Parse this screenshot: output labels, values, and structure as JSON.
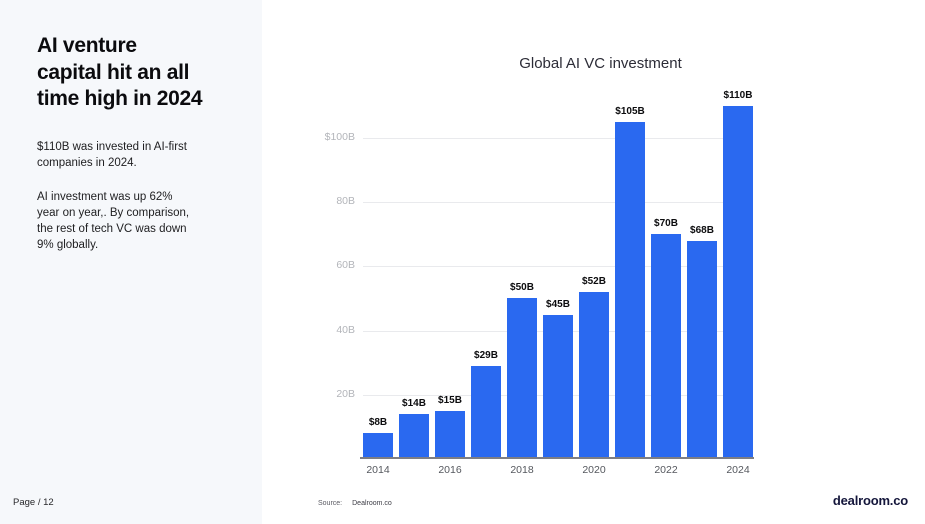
{
  "sidebar": {
    "title": "AI venture\ncapital hit an all\ntime high in 2024",
    "paragraph1": "$110B was invested in AI-first\ncompanies in 2024.",
    "paragraph2": "AI investment was up 62%\nyear on year,. By comparison,\nthe rest of tech VC was down\n9% globally.",
    "page_label": "Page / 12"
  },
  "footer": {
    "source_label": "Source:",
    "source_value": "Dealroom.co",
    "logo": "dealroom.co"
  },
  "colors": {
    "bar_blue": "#2a69f0",
    "logo_navy": "#14163b",
    "sidebar_bg": "#f6f8fb"
  },
  "chart_data": {
    "type": "bar",
    "title": "Global AI VC investment",
    "categories": [
      "2014",
      "2015",
      "2016",
      "2017",
      "2018",
      "2019",
      "2020",
      "2021",
      "2022",
      "2023",
      "2024"
    ],
    "values": [
      8,
      14,
      15,
      29,
      50,
      45,
      52,
      105,
      70,
      68,
      110
    ],
    "bar_labels": [
      "$8B",
      "$14B",
      "$15B",
      "$29B",
      "$50B",
      "$45B",
      "$52B",
      "$105B",
      "$70B",
      "$68B",
      "$110B"
    ],
    "y_ticks": [
      {
        "value": 20,
        "label": "20B"
      },
      {
        "value": 40,
        "label": "40B"
      },
      {
        "value": 60,
        "label": "60B"
      },
      {
        "value": 80,
        "label": "80B"
      },
      {
        "value": 100,
        "label": "$100B"
      }
    ],
    "x_tick_labels": [
      "2014",
      "2016",
      "2018",
      "2020",
      "2022",
      "2024"
    ],
    "xlabel": "",
    "ylabel": "",
    "ylim": [
      0,
      112
    ],
    "grid": true,
    "legend": "none",
    "bar_color": "#2a69f0"
  }
}
